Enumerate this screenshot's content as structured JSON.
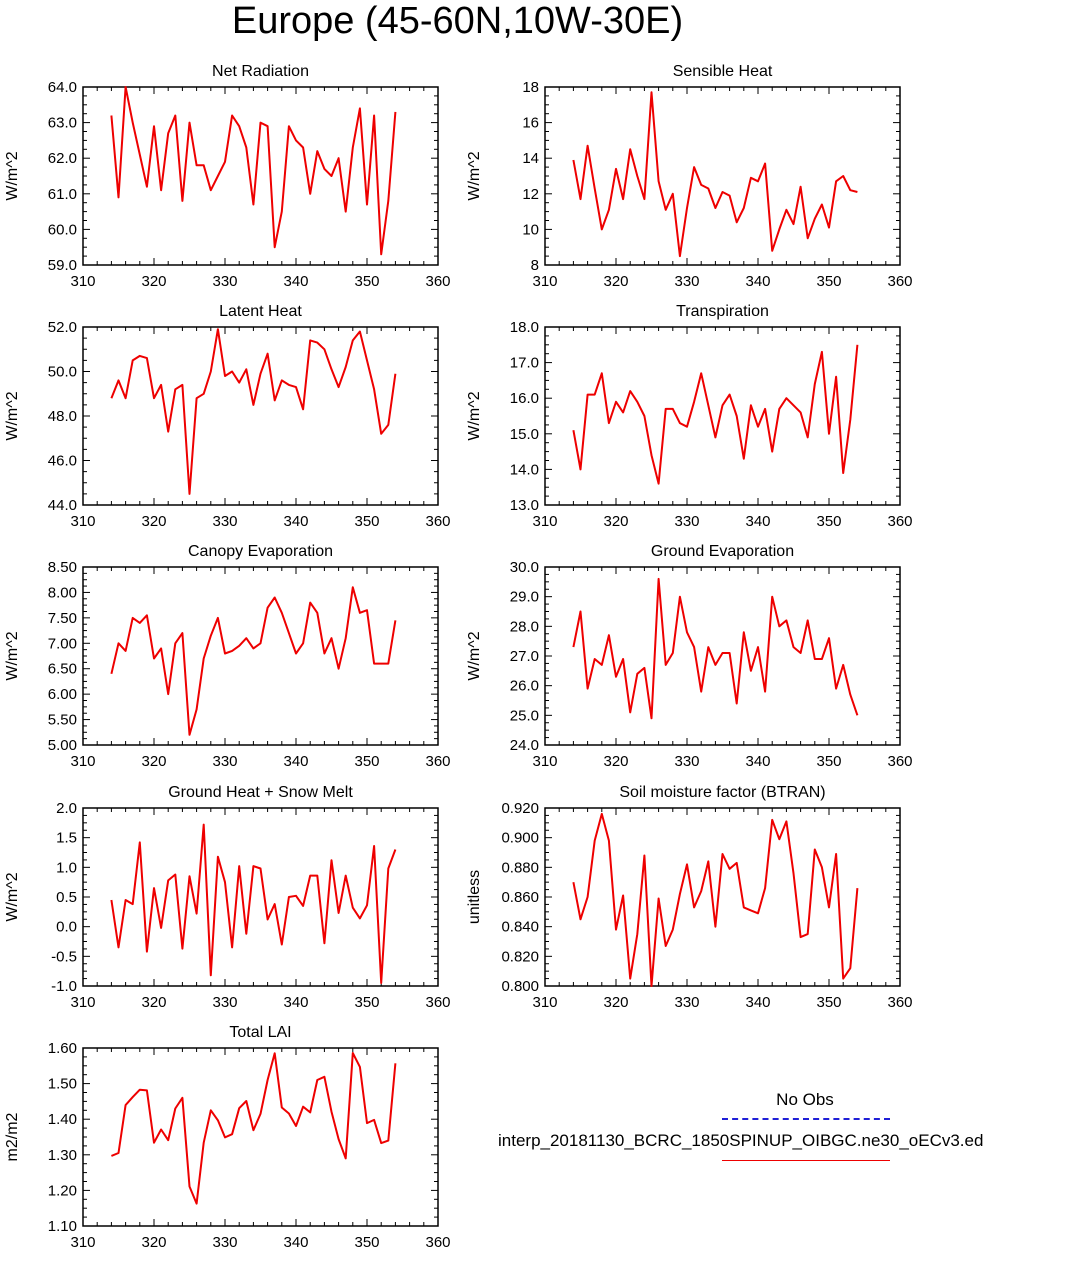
{
  "title": "Europe (45-60N,10W-30E)",
  "colors": {
    "model": "#ee0000",
    "obs": "#1f1fd6",
    "axis": "#000000"
  },
  "legend": {
    "obs_label": "No Obs",
    "model_label": "interp_20181130_BCRC_1850SPINUP_OIBGC.ne30_oECv3.ed"
  },
  "chart_data": [
    {
      "type": "line",
      "title": "Net Radiation",
      "ylabel": "W/m^2",
      "xlim": [
        310,
        360
      ],
      "xticks": [
        310,
        320,
        330,
        340,
        350,
        360
      ],
      "ylim": [
        59.0,
        64.0
      ],
      "yticks": [
        "59.0",
        "60.0",
        "61.0",
        "62.0",
        "63.0",
        "64.0"
      ],
      "x": [
        314,
        315,
        316,
        317,
        318,
        319,
        320,
        321,
        322,
        323,
        324,
        325,
        326,
        327,
        328,
        329,
        330,
        331,
        332,
        333,
        334,
        335,
        336,
        337,
        338,
        339,
        340,
        341,
        342,
        343,
        344,
        345,
        346,
        347,
        348,
        349,
        350,
        351,
        352,
        353,
        354
      ],
      "values": [
        63.2,
        60.9,
        64.0,
        63.0,
        62.1,
        61.2,
        62.9,
        61.1,
        62.7,
        63.2,
        60.8,
        63.0,
        61.8,
        61.8,
        61.1,
        61.5,
        61.9,
        63.2,
        62.9,
        62.3,
        60.7,
        63.0,
        62.9,
        59.5,
        60.5,
        62.9,
        62.5,
        62.3,
        61.0,
        62.2,
        61.7,
        61.5,
        62.0,
        60.5,
        62.3,
        63.4,
        60.7,
        63.2,
        59.3,
        60.8,
        63.3
      ]
    },
    {
      "type": "line",
      "title": "Sensible Heat",
      "ylabel": "W/m^2",
      "xlim": [
        310,
        360
      ],
      "xticks": [
        310,
        320,
        330,
        340,
        350,
        360
      ],
      "ylim": [
        8,
        18
      ],
      "yticks": [
        "8",
        "10",
        "12",
        "14",
        "16",
        "18"
      ],
      "x": [
        314,
        315,
        316,
        317,
        318,
        319,
        320,
        321,
        322,
        323,
        324,
        325,
        326,
        327,
        328,
        329,
        330,
        331,
        332,
        333,
        334,
        335,
        336,
        337,
        338,
        339,
        340,
        341,
        342,
        343,
        344,
        345,
        346,
        347,
        348,
        349,
        350,
        351,
        352,
        353,
        354
      ],
      "values": [
        13.9,
        11.7,
        14.7,
        12.3,
        10.0,
        11.1,
        13.4,
        11.7,
        14.5,
        13.0,
        11.7,
        17.7,
        12.7,
        11.1,
        12.0,
        8.5,
        11.2,
        13.5,
        12.5,
        12.3,
        11.2,
        12.1,
        11.9,
        10.4,
        11.2,
        12.9,
        12.7,
        13.7,
        8.8,
        10.0,
        11.1,
        10.3,
        12.4,
        9.5,
        10.6,
        11.4,
        10.1,
        12.7,
        13.0,
        12.2,
        12.1
      ]
    },
    {
      "type": "line",
      "title": "Latent Heat",
      "ylabel": "W/m^2",
      "xlim": [
        310,
        360
      ],
      "xticks": [
        310,
        320,
        330,
        340,
        350,
        360
      ],
      "ylim": [
        44.0,
        52.0
      ],
      "yticks": [
        "44.0",
        "46.0",
        "48.0",
        "50.0",
        "52.0"
      ],
      "x": [
        314,
        315,
        316,
        317,
        318,
        319,
        320,
        321,
        322,
        323,
        324,
        325,
        326,
        327,
        328,
        329,
        330,
        331,
        332,
        333,
        334,
        335,
        336,
        337,
        338,
        339,
        340,
        341,
        342,
        343,
        344,
        345,
        346,
        347,
        348,
        349,
        350,
        351,
        352,
        353,
        354
      ],
      "values": [
        48.8,
        49.6,
        48.8,
        50.5,
        50.7,
        50.6,
        48.8,
        49.4,
        47.3,
        49.2,
        49.4,
        44.5,
        48.8,
        49.0,
        50.0,
        51.9,
        49.8,
        50.0,
        49.5,
        50.1,
        48.5,
        49.9,
        50.8,
        48.7,
        49.6,
        49.4,
        49.3,
        48.3,
        51.4,
        51.3,
        51.0,
        50.1,
        49.3,
        50.2,
        51.4,
        51.8,
        50.5,
        49.2,
        47.2,
        47.6,
        49.9
      ]
    },
    {
      "type": "line",
      "title": "Transpiration",
      "ylabel": "W/m^2",
      "xlim": [
        310,
        360
      ],
      "xticks": [
        310,
        320,
        330,
        340,
        350,
        360
      ],
      "ylim": [
        13.0,
        18.0
      ],
      "yticks": [
        "13.0",
        "14.0",
        "15.0",
        "16.0",
        "17.0",
        "18.0"
      ],
      "x": [
        314,
        315,
        316,
        317,
        318,
        319,
        320,
        321,
        322,
        323,
        324,
        325,
        326,
        327,
        328,
        329,
        330,
        331,
        332,
        333,
        334,
        335,
        336,
        337,
        338,
        339,
        340,
        341,
        342,
        343,
        344,
        345,
        346,
        347,
        348,
        349,
        350,
        351,
        352,
        353,
        354
      ],
      "values": [
        15.1,
        14.0,
        16.1,
        16.1,
        16.7,
        15.3,
        15.9,
        15.6,
        16.2,
        15.9,
        15.5,
        14.4,
        13.6,
        15.7,
        15.7,
        15.3,
        15.2,
        15.9,
        16.7,
        15.8,
        14.9,
        15.8,
        16.1,
        15.5,
        14.3,
        15.8,
        15.2,
        15.7,
        14.5,
        15.7,
        16.0,
        15.8,
        15.6,
        14.9,
        16.4,
        17.3,
        15.0,
        16.6,
        13.9,
        15.4,
        17.5
      ]
    },
    {
      "type": "line",
      "title": "Canopy Evaporation",
      "ylabel": "W/m^2",
      "xlim": [
        310,
        360
      ],
      "xticks": [
        310,
        320,
        330,
        340,
        350,
        360
      ],
      "ylim": [
        5.0,
        8.5
      ],
      "yticks": [
        "5.00",
        "5.50",
        "6.00",
        "6.50",
        "7.00",
        "7.50",
        "8.00",
        "8.50"
      ],
      "x": [
        314,
        315,
        316,
        317,
        318,
        319,
        320,
        321,
        322,
        323,
        324,
        325,
        326,
        327,
        328,
        329,
        330,
        331,
        332,
        333,
        334,
        335,
        336,
        337,
        338,
        339,
        340,
        341,
        342,
        343,
        344,
        345,
        346,
        347,
        348,
        349,
        350,
        351,
        352,
        353,
        354
      ],
      "values": [
        6.4,
        7.0,
        6.85,
        7.5,
        7.4,
        7.55,
        6.7,
        6.9,
        6.0,
        7.0,
        7.2,
        5.2,
        5.7,
        6.7,
        7.15,
        7.5,
        6.8,
        6.85,
        6.95,
        7.1,
        6.9,
        7.0,
        7.7,
        7.9,
        7.6,
        7.2,
        6.8,
        7.0,
        7.8,
        7.6,
        6.8,
        7.1,
        6.5,
        7.1,
        8.1,
        7.6,
        7.65,
        6.6,
        6.6,
        6.6,
        7.45
      ]
    },
    {
      "type": "line",
      "title": "Ground Evaporation",
      "ylabel": "W/m^2",
      "xlim": [
        310,
        360
      ],
      "xticks": [
        310,
        320,
        330,
        340,
        350,
        360
      ],
      "ylim": [
        24.0,
        30.0
      ],
      "yticks": [
        "24.0",
        "25.0",
        "26.0",
        "27.0",
        "28.0",
        "29.0",
        "30.0"
      ],
      "x": [
        314,
        315,
        316,
        317,
        318,
        319,
        320,
        321,
        322,
        323,
        324,
        325,
        326,
        327,
        328,
        329,
        330,
        331,
        332,
        333,
        334,
        335,
        336,
        337,
        338,
        339,
        340,
        341,
        342,
        343,
        344,
        345,
        346,
        347,
        348,
        349,
        350,
        351,
        352,
        353,
        354
      ],
      "values": [
        27.3,
        28.5,
        25.9,
        26.9,
        26.7,
        27.7,
        26.3,
        26.9,
        25.1,
        26.4,
        26.6,
        24.9,
        29.6,
        26.7,
        27.1,
        29.0,
        27.8,
        27.3,
        25.8,
        27.3,
        26.7,
        27.1,
        27.1,
        25.4,
        27.8,
        26.5,
        27.3,
        25.8,
        29.0,
        28.0,
        28.2,
        27.3,
        27.1,
        28.2,
        26.9,
        26.9,
        27.6,
        25.9,
        26.7,
        25.7,
        25.0
      ]
    },
    {
      "type": "line",
      "title": "Ground Heat + Snow Melt",
      "ylabel": "W/m^2",
      "xlim": [
        310,
        360
      ],
      "xticks": [
        310,
        320,
        330,
        340,
        350,
        360
      ],
      "ylim": [
        -1.0,
        2.0
      ],
      "yticks": [
        "-1.0",
        "-0.5",
        "0.0",
        "0.5",
        "1.0",
        "1.5",
        "2.0"
      ],
      "x": [
        314,
        315,
        316,
        317,
        318,
        319,
        320,
        321,
        322,
        323,
        324,
        325,
        326,
        327,
        328,
        329,
        330,
        331,
        332,
        333,
        334,
        335,
        336,
        337,
        338,
        339,
        340,
        341,
        342,
        343,
        344,
        345,
        346,
        347,
        348,
        349,
        350,
        351,
        352,
        353,
        354
      ],
      "values": [
        0.45,
        -0.35,
        0.45,
        0.38,
        1.42,
        -0.42,
        0.65,
        -0.02,
        0.78,
        0.88,
        -0.37,
        0.85,
        0.22,
        1.72,
        -0.82,
        1.18,
        0.75,
        -0.35,
        1.02,
        -0.12,
        1.02,
        0.98,
        0.12,
        0.38,
        -0.3,
        0.5,
        0.52,
        0.35,
        0.86,
        0.86,
        -0.28,
        1.12,
        0.23,
        0.86,
        0.32,
        0.14,
        0.36,
        1.36,
        -0.95,
        0.98,
        1.3
      ]
    },
    {
      "type": "line",
      "title": "Soil moisture factor (BTRAN)",
      "ylabel": "unitless",
      "xlim": [
        310,
        360
      ],
      "xticks": [
        310,
        320,
        330,
        340,
        350,
        360
      ],
      "ylim": [
        0.8,
        0.92
      ],
      "yticks": [
        "0.800",
        "0.820",
        "0.840",
        "0.860",
        "0.880",
        "0.900",
        "0.920"
      ],
      "x": [
        314,
        315,
        316,
        317,
        318,
        319,
        320,
        321,
        322,
        323,
        324,
        325,
        326,
        327,
        328,
        329,
        330,
        331,
        332,
        333,
        334,
        335,
        336,
        337,
        338,
        339,
        340,
        341,
        342,
        343,
        344,
        345,
        346,
        347,
        348,
        349,
        350,
        351,
        352,
        353,
        354
      ],
      "values": [
        0.87,
        0.845,
        0.86,
        0.898,
        0.916,
        0.898,
        0.838,
        0.861,
        0.805,
        0.835,
        0.888,
        0.8,
        0.859,
        0.827,
        0.838,
        0.862,
        0.882,
        0.853,
        0.864,
        0.884,
        0.84,
        0.889,
        0.879,
        0.883,
        0.853,
        0.851,
        0.849,
        0.866,
        0.912,
        0.899,
        0.911,
        0.876,
        0.833,
        0.835,
        0.892,
        0.88,
        0.853,
        0.889,
        0.805,
        0.812,
        0.866
      ]
    },
    {
      "type": "line",
      "title": "Total LAI",
      "ylabel": "m2/m2",
      "xlim": [
        310,
        360
      ],
      "xticks": [
        310,
        320,
        330,
        340,
        350,
        360
      ],
      "ylim": [
        1.1,
        1.6
      ],
      "yticks": [
        "1.10",
        "1.20",
        "1.30",
        "1.40",
        "1.50",
        "1.60"
      ],
      "x": [
        314,
        315,
        316,
        317,
        318,
        319,
        320,
        321,
        322,
        323,
        324,
        325,
        326,
        327,
        328,
        329,
        330,
        331,
        332,
        333,
        334,
        335,
        336,
        337,
        338,
        339,
        340,
        341,
        342,
        343,
        344,
        345,
        346,
        347,
        348,
        349,
        350,
        351,
        352,
        353,
        354
      ],
      "values": [
        1.297,
        1.305,
        1.44,
        1.462,
        1.483,
        1.481,
        1.334,
        1.371,
        1.341,
        1.43,
        1.46,
        1.211,
        1.163,
        1.334,
        1.425,
        1.397,
        1.349,
        1.358,
        1.431,
        1.451,
        1.369,
        1.415,
        1.51,
        1.585,
        1.433,
        1.416,
        1.381,
        1.435,
        1.419,
        1.51,
        1.519,
        1.421,
        1.344,
        1.29,
        1.586,
        1.547,
        1.389,
        1.398,
        1.333,
        1.34,
        1.557
      ]
    }
  ]
}
